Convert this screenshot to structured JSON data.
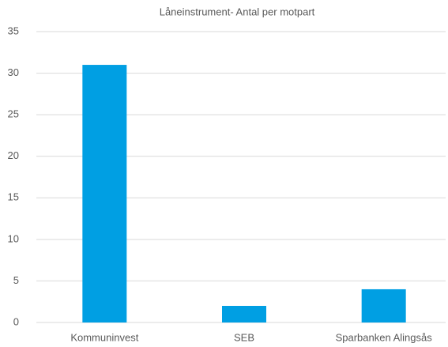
{
  "chart_data": {
    "type": "bar",
    "title": "Låneinstrument- Antal per motpart",
    "categories": [
      "Kommuninvest",
      "SEB",
      "Sparbanken Alingsås"
    ],
    "values": [
      31,
      2,
      4
    ],
    "color": "#009fe3",
    "ylim": [
      0,
      35
    ],
    "yticks": [
      0,
      5,
      10,
      15,
      20,
      25,
      30,
      35
    ],
    "grid": true
  }
}
